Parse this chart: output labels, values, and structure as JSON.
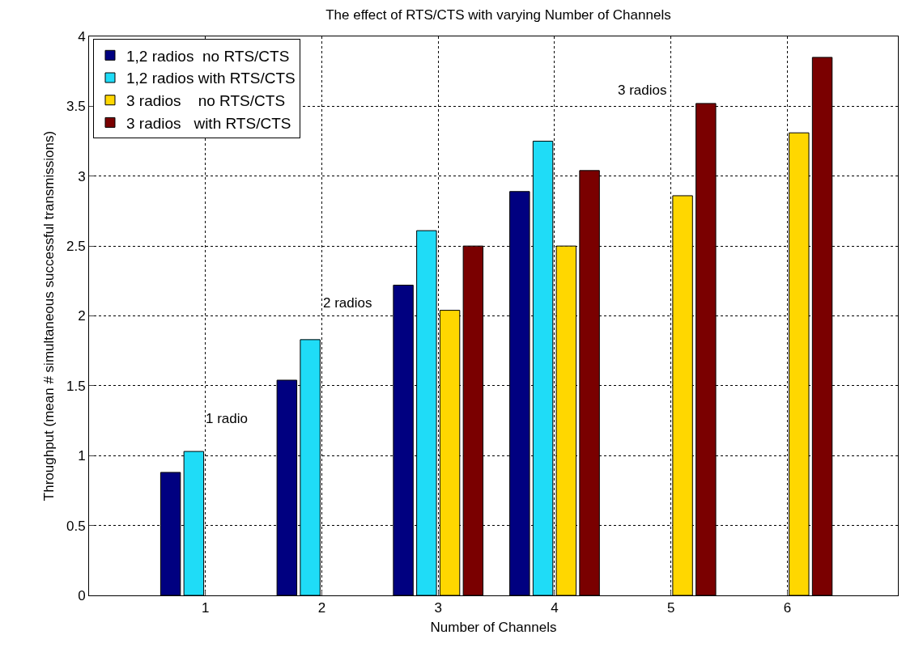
{
  "chart_data": {
    "type": "bar",
    "title": "The effect of RTS/CTS with varying Number of Channels",
    "xlabel": "Number of Channels",
    "ylabel": "Throughput (mean # simultaneous successful transmissions)",
    "categories": [
      "1",
      "2",
      "3",
      "4",
      "5",
      "6"
    ],
    "series": [
      {
        "name": "1,2 radios  no RTS/CTS",
        "color": "#000080",
        "values": [
          0.88,
          1.54,
          2.22,
          2.89,
          null,
          null
        ]
      },
      {
        "name": "1,2 radios with RTS/CTS",
        "color": "#1fdcf7",
        "values": [
          1.03,
          1.83,
          2.61,
          3.25,
          null,
          null
        ]
      },
      {
        "name": "3 radios    no RTS/CTS",
        "color": "#ffd700",
        "values": [
          null,
          null,
          2.04,
          2.5,
          2.86,
          3.31
        ]
      },
      {
        "name": "3 radios   with RTS/CTS",
        "color": "#7a0000",
        "values": [
          null,
          null,
          2.5,
          3.04,
          3.52,
          3.85
        ]
      }
    ],
    "ylim": [
      0,
      4
    ],
    "yticks": [
      0,
      0.5,
      1,
      1.5,
      2,
      2.5,
      3,
      3.5,
      4
    ],
    "grid": true,
    "legend": "top left",
    "annotations": [
      "1 radio",
      "2 radios",
      "3 radios"
    ]
  }
}
